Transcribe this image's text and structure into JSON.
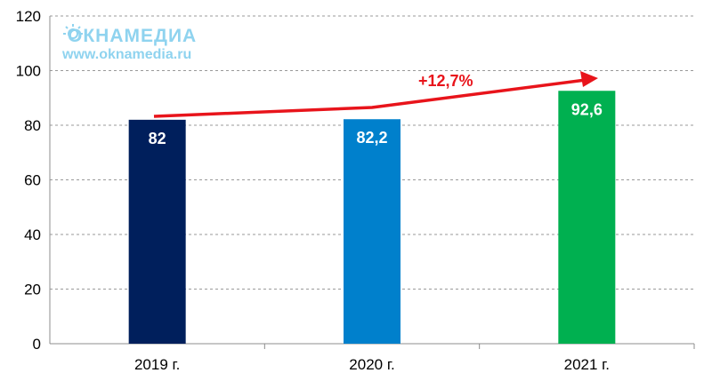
{
  "watermark": {
    "brand": "ОКНАМЕДИА",
    "url": "www.oknamedia.ru"
  },
  "annotation": {
    "growth_label": "+12,7%",
    "arrow_color": "#e8141b"
  },
  "chart_data": {
    "type": "bar",
    "categories": [
      "2019 г.",
      "2020 г.",
      "2021 г."
    ],
    "values": [
      82,
      82.2,
      92.6
    ],
    "value_labels": [
      "82",
      "82,2",
      "92,6"
    ],
    "colors": [
      "#001f5c",
      "#0080cc",
      "#00b050"
    ],
    "ylim": [
      0,
      120
    ],
    "yticks": [
      0,
      20,
      40,
      60,
      80,
      100,
      120
    ],
    "grid": true,
    "legend": "none",
    "title": "",
    "xlabel": "",
    "ylabel": ""
  }
}
